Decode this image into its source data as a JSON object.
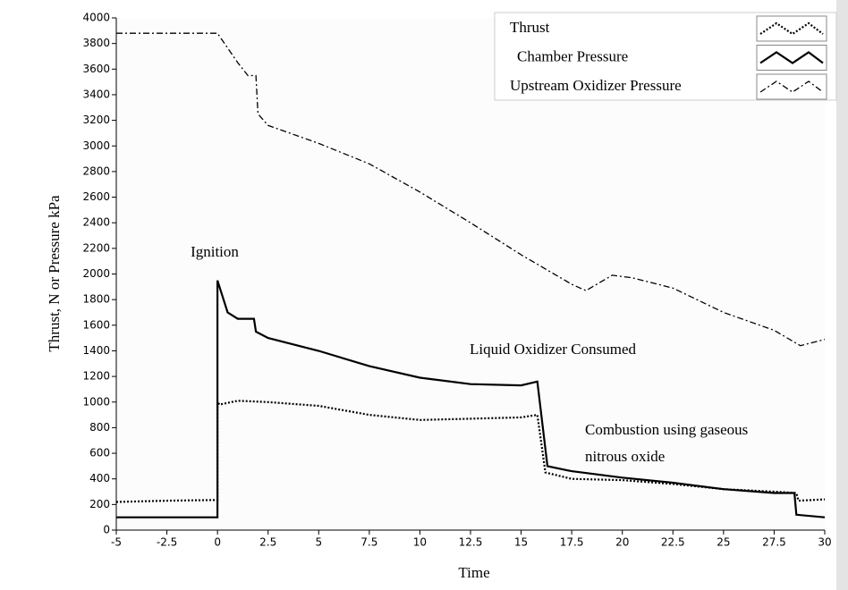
{
  "chart_data": {
    "type": "line",
    "x_label": "Time",
    "y_label": "Thrust, N or Pressure kPa",
    "annotations": [
      "Ignition",
      "Liquid Oxidizer Consumed",
      "Combustion using gaseous",
      "nitrous oxide"
    ],
    "xlim": [
      -5,
      30
    ],
    "xticks": [
      -5,
      -2.5,
      0,
      2.5,
      5,
      7.5,
      10,
      12.5,
      15,
      17.5,
      20,
      22.5,
      25,
      27.5,
      30
    ],
    "ylim": [
      0,
      4000
    ],
    "yticks": [
      0,
      200,
      400,
      600,
      800,
      1000,
      1200,
      1400,
      1600,
      1800,
      2000,
      2200,
      2400,
      2600,
      2800,
      3000,
      3200,
      3400,
      3600,
      3800,
      4000
    ],
    "legend": "upper right",
    "series": [
      {
        "name": "Thrust",
        "color": "#000000",
        "line_style": "dotted",
        "x": [
          -5,
          -2.5,
          0,
          0,
          0.1,
          1,
          2.5,
          5,
          7.5,
          10,
          12.5,
          15,
          15.8,
          16.2,
          17.5,
          20,
          22.5,
          25,
          27.5,
          28.6,
          28.7,
          30
        ],
        "values": [
          220,
          230,
          235,
          1000,
          980,
          1010,
          1000,
          970,
          900,
          860,
          870,
          880,
          900,
          450,
          400,
          390,
          360,
          320,
          300,
          290,
          230,
          240
        ]
      },
      {
        "name": "Chamber Pressure",
        "color": "#000000",
        "line_style": "solid",
        "x": [
          -5,
          0,
          0,
          0.5,
          1,
          1.8,
          1.9,
          2.5,
          5,
          7.5,
          10,
          12.5,
          15,
          15.8,
          16.3,
          17.5,
          20,
          22.5,
          25,
          27.5,
          28.5,
          28.6,
          30
        ],
        "values": [
          100,
          100,
          1950,
          1700,
          1650,
          1650,
          1550,
          1500,
          1400,
          1280,
          1190,
          1140,
          1130,
          1160,
          500,
          460,
          410,
          370,
          320,
          290,
          290,
          120,
          100
        ]
      },
      {
        "name": "Upstream Oxidizer Pressure",
        "color": "#000000",
        "line_style": "dash-dot",
        "x": [
          -5,
          0,
          1,
          1.5,
          1.9,
          2,
          2.5,
          5,
          7.5,
          10,
          12.5,
          15,
          17.5,
          18.2,
          19.5,
          20.5,
          22.5,
          25,
          27.5,
          28.8,
          30
        ],
        "values": [
          3880,
          3880,
          3650,
          3550,
          3550,
          3250,
          3160,
          3020,
          2860,
          2640,
          2400,
          2150,
          1920,
          1870,
          1990,
          1970,
          1890,
          1700,
          1560,
          1440,
          1490
        ]
      }
    ]
  }
}
